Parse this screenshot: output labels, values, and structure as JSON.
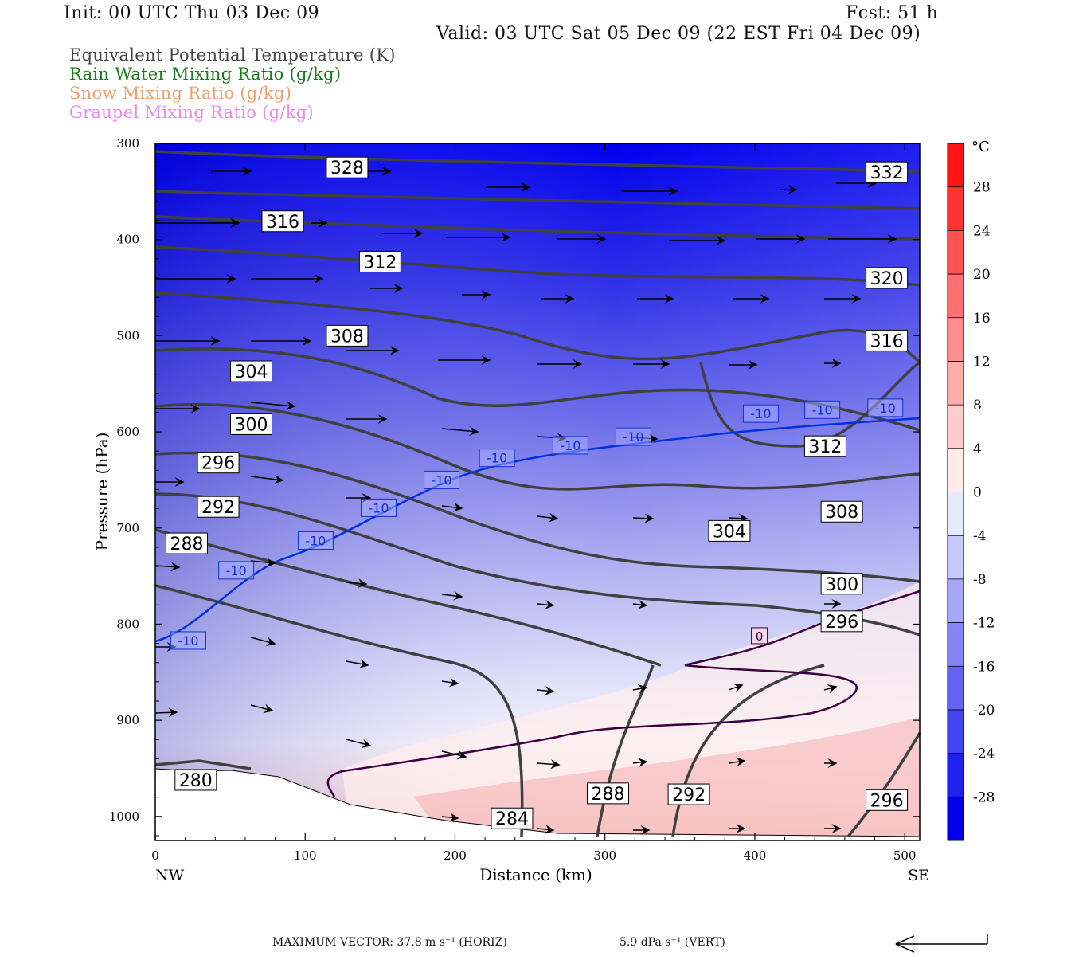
{
  "header": {
    "init": "Init: 00 UTC Thu 03 Dec 09",
    "fcst": "Fcst:   51 h",
    "valid": "Valid: 03 UTC Sat 05 Dec 09 (22 EST Fri 04 Dec 09)"
  },
  "legend": [
    {
      "label": "Equivalent Potential Temperature (K)",
      "color": "#444444"
    },
    {
      "label": "Rain Water Mixing Ratio (g/kg)",
      "color": "#1a7a1a"
    },
    {
      "label": "Snow Mixing Ratio (g/kg)",
      "color": "#f0a070"
    },
    {
      "label": "Graupel Mixing Ratio (g/kg)",
      "color": "#e68ce6"
    }
  ],
  "chart_data": {
    "type": "cross-section contour",
    "xlabel": "Distance (km)",
    "ylabel": "Pressure (hPa)",
    "xlim": [
      0,
      510
    ],
    "ylim": [
      1025,
      300
    ],
    "x_ticks": [
      0,
      100,
      200,
      300,
      400,
      500
    ],
    "y_ticks": [
      300,
      400,
      500,
      600,
      700,
      800,
      900,
      1000
    ],
    "x_end_labels": {
      "left": "NW",
      "right": "SE"
    },
    "colorbar": {
      "unit": "°C",
      "ticks": [
        28,
        24,
        20,
        16,
        12,
        8,
        4,
        0,
        -4,
        -8,
        -12,
        -16,
        -20,
        -24,
        -28
      ]
    },
    "theta_e_labels": [
      {
        "text": "328",
        "x": 128,
        "p": 325
      },
      {
        "text": "332",
        "x": 488,
        "p": 330
      },
      {
        "text": "316",
        "x": 85,
        "p": 381
      },
      {
        "text": "312",
        "x": 150,
        "p": 423
      },
      {
        "text": "320",
        "x": 488,
        "p": 440
      },
      {
        "text": "308",
        "x": 128,
        "p": 500
      },
      {
        "text": "316",
        "x": 488,
        "p": 505
      },
      {
        "text": "304",
        "x": 64,
        "p": 537
      },
      {
        "text": "300",
        "x": 64,
        "p": 592
      },
      {
        "text": "312",
        "x": 447,
        "p": 615
      },
      {
        "text": "296",
        "x": 42,
        "p": 632
      },
      {
        "text": "292",
        "x": 42,
        "p": 678
      },
      {
        "text": "308",
        "x": 458,
        "p": 683
      },
      {
        "text": "304",
        "x": 383,
        "p": 703
      },
      {
        "text": "288",
        "x": 21,
        "p": 716
      },
      {
        "text": "300",
        "x": 458,
        "p": 758
      },
      {
        "text": "296",
        "x": 458,
        "p": 797
      },
      {
        "text": "280",
        "x": 27,
        "p": 962
      },
      {
        "text": "288",
        "x": 302,
        "p": 976
      },
      {
        "text": "292",
        "x": 356,
        "p": 977
      },
      {
        "text": "296",
        "x": 488,
        "p": 983
      },
      {
        "text": "284",
        "x": 238,
        "p": 1002
      }
    ],
    "isotherm_labels": [
      {
        "text": "-10",
        "x": 22,
        "p": 817
      },
      {
        "text": "-10",
        "x": 54,
        "p": 744
      },
      {
        "text": "-10",
        "x": 107,
        "p": 713
      },
      {
        "text": "-10",
        "x": 149,
        "p": 679
      },
      {
        "text": "-10",
        "x": 191,
        "p": 650
      },
      {
        "text": "-10",
        "x": 228,
        "p": 627
      },
      {
        "text": "-10",
        "x": 277,
        "p": 614
      },
      {
        "text": "-10",
        "x": 319,
        "p": 605
      },
      {
        "text": "-10",
        "x": 404,
        "p": 581
      },
      {
        "text": "-10",
        "x": 445,
        "p": 577
      },
      {
        "text": "-10",
        "x": 487,
        "p": 575
      }
    ],
    "rain_label": {
      "text": "0",
      "x": 403,
      "p": 812
    },
    "footer_left": "MAXIMUM VECTOR:  37.8 m s⁻¹ (HORIZ)",
    "footer_right": "5.9 dPa s⁻¹ (VERT)"
  }
}
